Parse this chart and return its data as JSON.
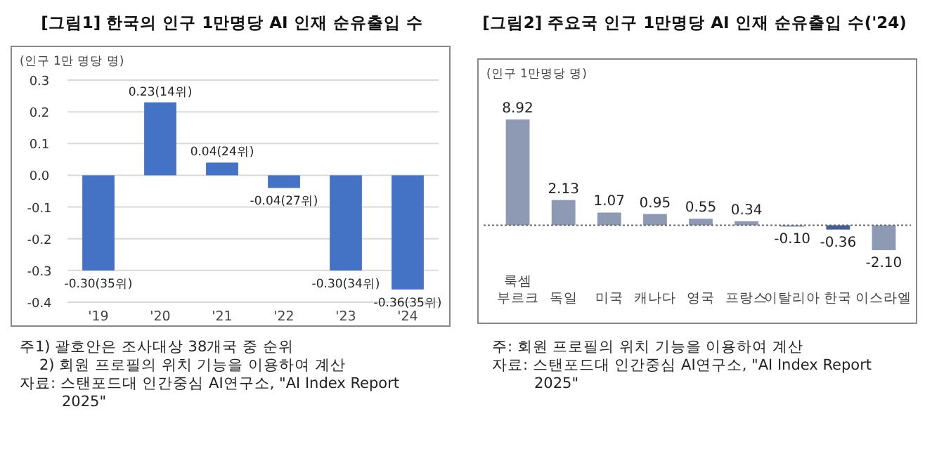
{
  "chart_data": [
    {
      "type": "bar",
      "title": "[그림1] 한국의 인구 1만명당 AI 인재 순유출입 수",
      "ylabel": "(인구 1만 명당 명)",
      "categories": [
        "'19",
        "'20",
        "'21",
        "'22",
        "'23",
        "'24"
      ],
      "values": [
        -0.3,
        0.23,
        0.04,
        -0.04,
        -0.3,
        -0.36
      ],
      "color": "#4472c4",
      "value_labels": [
        "-0.30(35위)",
        "0.23(14위)",
        "0.04(24위)",
        "-0.04(27위)",
        "-0.30(34위)",
        "-0.36(35위)"
      ],
      "ylim": [
        -0.4,
        0.3
      ],
      "yticks": [
        {
          "value": -0.4,
          "label": "-0.4"
        },
        {
          "value": -0.3,
          "label": "-0.3"
        },
        {
          "value": -0.2,
          "label": "-0.2"
        },
        {
          "value": -0.1,
          "label": "-0.1"
        },
        {
          "value": 0,
          "label": "0.0"
        },
        {
          "value": 0.1,
          "label": "0.1"
        },
        {
          "value": 0.2,
          "label": "0.2"
        },
        {
          "value": 0.3,
          "label": "0.3"
        }
      ],
      "grid": "y",
      "annotations": [
        "주1) 괄호안은 조사대상 38개국 중 순위",
        "2) 회원 프로필의 위치 기능을 이용하여 계산",
        "자료: 스탠포드대 인간중심 AI연구소, \"AI Index Report 2025\""
      ]
    },
    {
      "type": "bar",
      "title": "[그림2] 주요국 인구 1만명당 AI 인재 순유출입 수('24)",
      "ylabel": "(인구 1만명당 명)",
      "categories": [
        "룩셈부르크",
        "독일",
        "미국",
        "캐나다",
        "영국",
        "프랑스",
        "이탈리아",
        "한국",
        "이스라엘"
      ],
      "values": [
        8.92,
        2.13,
        1.07,
        0.95,
        0.55,
        0.34,
        -0.1,
        -0.36,
        -2.1
      ],
      "colors": [
        "#8e9ab4",
        "#8e9ab4",
        "#8e9ab4",
        "#8e9ab4",
        "#8e9ab4",
        "#8e9ab4",
        "#8e9ab4",
        "#3f5f99",
        "#8e9ab4"
      ],
      "value_labels": [
        "8.92",
        "2.13",
        "1.07",
        "0.95",
        "0.55",
        "0.34",
        "-0.10",
        "-0.36",
        "-2.10"
      ],
      "ref_lines": [
        {
          "axis": "y",
          "value": 0,
          "color": "#666666",
          "line_style": "dotted"
        }
      ],
      "annotations": [
        "주: 회원 프로필의 위치 기능을 이용하여 계산",
        "자료: 스탠포드대 인간중심 AI연구소, \"AI Index Report 2025\""
      ]
    }
  ]
}
